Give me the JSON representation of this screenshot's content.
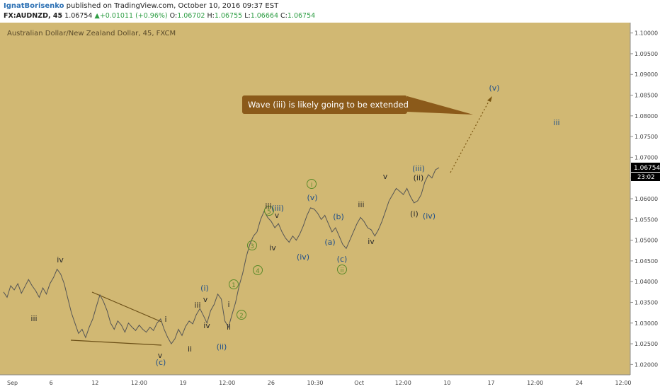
{
  "header": {
    "author": "IgnatBorisenko",
    "published_text": "published on TradingView.com, October 10, 2016 09:37 EST",
    "symbol": "FX:AUDNZD, 45",
    "last": "1.06754",
    "change": "+0.01011 (+0.96%)",
    "o_label": "O:",
    "o_value": "1.06702",
    "h_label": "H:",
    "h_value": "1.06755",
    "l_label": "L:",
    "l_value": "1.06664",
    "c_label": "C:",
    "c_value": "1.06754"
  },
  "chart_data": {
    "type": "line",
    "title": "Australian Dollar/New Zealand Dollar, 45, FXCM",
    "ylim": [
      1.0175,
      1.1025
    ],
    "y_ticks": [
      "1.10000",
      "1.09500",
      "1.09000",
      "1.08500",
      "1.08000",
      "1.07500",
      "1.07000",
      "1.06500",
      "1.06000",
      "1.05500",
      "1.05000",
      "1.04500",
      "1.04000",
      "1.03500",
      "1.03000",
      "1.02500",
      "1.02000"
    ],
    "x_ticks": [
      "Sep",
      "6",
      "12",
      "12:00",
      "19",
      "12:00",
      "26",
      "10:30",
      "Oct",
      "12:00",
      "10",
      "17",
      "12:00",
      "24",
      "12:00"
    ],
    "price_label": "1.06754",
    "countdown_label": "23:02",
    "series": [
      {
        "values": [
          1.0375,
          1.0362,
          1.039,
          1.038,
          1.0395,
          1.0372,
          1.0388,
          1.0405,
          1.039,
          1.0378,
          1.0362,
          1.0385,
          1.037,
          1.0395,
          1.041,
          1.043,
          1.0418,
          1.0395,
          1.036,
          1.0325,
          1.03,
          1.0275,
          1.0285,
          1.0265,
          1.029,
          1.031,
          1.034,
          1.0368,
          1.0352,
          1.033,
          1.03,
          1.0285,
          1.0305,
          1.0295,
          1.0278,
          1.03,
          1.029,
          1.0282,
          1.0295,
          1.0285,
          1.0278,
          1.029,
          1.0282,
          1.03,
          1.031,
          1.0285,
          1.0265,
          1.025,
          1.0262,
          1.0285,
          1.027,
          1.0292,
          1.0305,
          1.0298,
          1.032,
          1.0335,
          1.0318,
          1.03,
          1.033,
          1.0345,
          1.037,
          1.0358,
          1.0305,
          1.029,
          1.032,
          1.035,
          1.039,
          1.042,
          1.046,
          1.049,
          1.051,
          1.052,
          1.055,
          1.057,
          1.0555,
          1.0545,
          1.053,
          1.054,
          1.052,
          1.0505,
          1.0495,
          1.051,
          1.05,
          1.0515,
          1.0535,
          1.056,
          1.0578,
          1.0575,
          1.0565,
          1.055,
          1.056,
          1.054,
          1.052,
          1.053,
          1.051,
          1.049,
          1.048,
          1.05,
          1.052,
          1.054,
          1.0555,
          1.0545,
          1.053,
          1.0525,
          1.051,
          1.0525,
          1.0545,
          1.057,
          1.0595,
          1.061,
          1.0625,
          1.0618,
          1.061,
          1.0625,
          1.0605,
          1.059,
          1.0595,
          1.061,
          1.064,
          1.0658,
          1.065,
          1.067,
          1.0675
        ],
        "color": "#555555"
      }
    ],
    "annotations": {
      "callout": "Wave (iii) is likely going to be extended",
      "labels": [
        "iii",
        "iv",
        "v",
        "(c)",
        "i",
        "ii",
        "iii",
        "iv",
        "v",
        "(i)",
        "(ii)",
        "1",
        "2",
        "3",
        "4",
        "5",
        "iii",
        "(iii)",
        "iv",
        "v",
        "(iv)",
        "(v)",
        "i",
        "(a)",
        "(b)",
        "(c)",
        "ii",
        "i",
        "ii",
        "iii",
        "iv",
        "v",
        "(i)",
        "(ii)",
        "(iii)",
        "(iv)",
        "(v)",
        "iii"
      ]
    }
  },
  "colors": {
    "background": "#d1b873",
    "axis_bg": "#ffffff",
    "wave_dark": "#2b2b2b",
    "wave_blue": "#1f4f8a",
    "wave_green": "#5a8a2a",
    "callout_fill": "#8b5a1a",
    "price_tag": "#000000"
  }
}
